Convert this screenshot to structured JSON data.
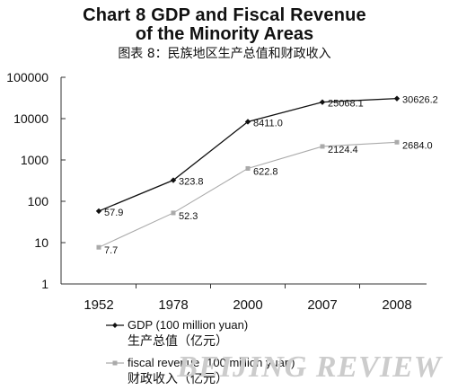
{
  "titles": {
    "line1": "Chart 8  GDP and Fiscal Revenue",
    "line2": "of the Minority Areas",
    "subtitle": "图表 8：民族地区生产总值和财政收入"
  },
  "watermark": "BEIJING REVIEW",
  "chart_data": {
    "type": "line",
    "title": "Chart 8 GDP and Fiscal Revenue of the Minority Areas",
    "subtitle": "图表 8：民族地区生产总值和财政收入",
    "yscale": "log",
    "ylim": [
      1,
      100000
    ],
    "yticks": [
      "1",
      "10",
      "100",
      "1000",
      "10000",
      "100000"
    ],
    "categories": [
      "1952",
      "1978",
      "2000",
      "2007",
      "2008"
    ],
    "grid": false,
    "legend_position": "bottom-left",
    "series": [
      {
        "name": "GDP (100 million yuan)",
        "name_cn": "生产总值（亿元）",
        "values": [
          57.9,
          323.8,
          8411.0,
          25068.1,
          30626.2
        ],
        "labels": [
          "57.9",
          "323.8",
          "8411.0",
          "25068.1",
          "30626.2"
        ],
        "color": "#111111",
        "marker": "diamond"
      },
      {
        "name": "fiscal revenue (100 million yuan)",
        "name_cn": "财政收入（亿元）",
        "values": [
          7.7,
          52.3,
          622.8,
          2124.4,
          2684.0
        ],
        "labels": [
          "7.7",
          "52.3",
          "622.8",
          "2124.4",
          "2684.0"
        ],
        "color": "#aaaaaa",
        "marker": "square"
      }
    ]
  }
}
